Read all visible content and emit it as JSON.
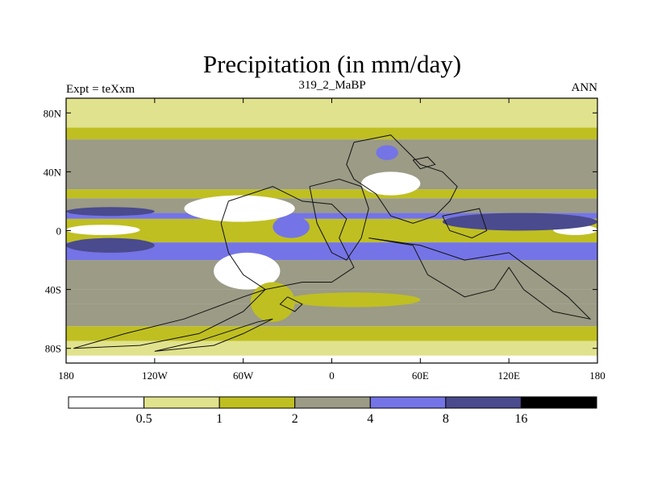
{
  "chart_data": {
    "type": "heatmap",
    "title": "Precipitation (in mm/day)",
    "subtitle_left": "Expt = teXxm",
    "subtitle_center": "319_2_MaBP",
    "subtitle_right": "ANN",
    "x": {
      "range": [
        -180,
        180
      ],
      "ticks": [
        -180,
        -120,
        -60,
        0,
        60,
        120,
        180
      ],
      "tick_labels": [
        "180",
        "120W",
        "60W",
        "0",
        "60E",
        "120E",
        "180"
      ]
    },
    "y": {
      "range": [
        -90,
        90
      ],
      "ticks": [
        80,
        40,
        0,
        -40,
        -80
      ],
      "tick_labels": [
        "80N",
        "40N",
        "0",
        "40S",
        "80S"
      ]
    },
    "colorbar": {
      "levels": [
        0.5,
        1,
        2,
        4,
        8,
        16
      ],
      "level_labels": [
        "0.5",
        "1",
        "2",
        "4",
        "8",
        "16"
      ],
      "colors": [
        "#ffffff",
        "#e1e28d",
        "#bfbf22",
        "#9b9b86",
        "#7474e6",
        "#4a4a8e",
        "#000000"
      ]
    },
    "zonal_bands": [
      {
        "lat": [
          70,
          90
        ],
        "class": 1
      },
      {
        "lat": [
          62,
          70
        ],
        "class": 2
      },
      {
        "lat": [
          28,
          62
        ],
        "class": 3
      },
      {
        "lat": [
          22,
          28
        ],
        "class": 2
      },
      {
        "lat": [
          12,
          22
        ],
        "class": 3
      },
      {
        "lat": [
          8,
          12
        ],
        "class": 4
      },
      {
        "lat": [
          -8,
          8
        ],
        "class": 2
      },
      {
        "lat": [
          -20,
          -8
        ],
        "class": 4
      },
      {
        "lat": [
          -40,
          -20
        ],
        "class": 3
      },
      {
        "lat": [
          -50,
          -40
        ],
        "class": 3
      },
      {
        "lat": [
          -65,
          -50
        ],
        "class": 3
      },
      {
        "lat": [
          -75,
          -65
        ],
        "class": 2
      },
      {
        "lat": [
          -85,
          -75
        ],
        "class": 1
      },
      {
        "lat": [
          -90,
          -85
        ],
        "class": 0
      }
    ],
    "features": [
      {
        "lon": [
          -180,
          -130
        ],
        "lat": [
          -3,
          4
        ],
        "class": 0
      },
      {
        "lon": [
          150,
          180
        ],
        "lat": [
          -3,
          4
        ],
        "class": 0
      },
      {
        "lon": [
          -100,
          -25
        ],
        "lat": [
          6,
          24
        ],
        "class": 0
      },
      {
        "lon": [
          -80,
          -35
        ],
        "lat": [
          -40,
          -15
        ],
        "class": 0
      },
      {
        "lon": [
          20,
          60
        ],
        "lat": [
          24,
          40
        ],
        "class": 0
      },
      {
        "lon": [
          75,
          180
        ],
        "lat": [
          0,
          12
        ],
        "class": 5
      },
      {
        "lon": [
          -180,
          -120
        ],
        "lat": [
          -15,
          -5
        ],
        "class": 5
      },
      {
        "lon": [
          -180,
          -120
        ],
        "lat": [
          10,
          16
        ],
        "class": 5
      },
      {
        "lon": [
          30,
          45
        ],
        "lat": [
          48,
          58
        ],
        "class": 4
      },
      {
        "lon": [
          -40,
          -15
        ],
        "lat": [
          -5,
          10
        ],
        "class": 4
      },
      {
        "lon": [
          -55,
          -25
        ],
        "lat": [
          -62,
          -35
        ],
        "class": 2
      },
      {
        "lon": [
          -30,
          60
        ],
        "lat": [
          -52,
          -42
        ],
        "class": 2
      }
    ],
    "outlines": [
      [
        [
          -70,
          20
        ],
        [
          -40,
          30
        ],
        [
          -20,
          20
        ],
        [
          0,
          18
        ],
        [
          10,
          8
        ],
        [
          5,
          -5
        ],
        [
          15,
          -25
        ],
        [
          0,
          -35
        ],
        [
          -20,
          -35
        ],
        [
          -45,
          -40
        ],
        [
          -60,
          -30
        ],
        [
          -70,
          -15
        ],
        [
          -75,
          5
        ],
        [
          -70,
          20
        ]
      ],
      [
        [
          15,
          60
        ],
        [
          40,
          65
        ],
        [
          50,
          55
        ],
        [
          60,
          45
        ],
        [
          75,
          40
        ],
        [
          85,
          30
        ],
        [
          80,
          20
        ],
        [
          70,
          10
        ],
        [
          55,
          5
        ],
        [
          40,
          10
        ],
        [
          30,
          25
        ],
        [
          15,
          35
        ],
        [
          10,
          45
        ],
        [
          15,
          60
        ]
      ],
      [
        [
          -15,
          30
        ],
        [
          5,
          35
        ],
        [
          20,
          30
        ],
        [
          25,
          15
        ],
        [
          20,
          -5
        ],
        [
          10,
          -20
        ],
        [
          0,
          -15
        ],
        [
          -10,
          5
        ],
        [
          -15,
          30
        ]
      ],
      [
        [
          75,
          10
        ],
        [
          100,
          15
        ],
        [
          105,
          0
        ],
        [
          95,
          -5
        ],
        [
          80,
          0
        ],
        [
          75,
          10
        ]
      ],
      [
        [
          25,
          -5
        ],
        [
          55,
          -10
        ],
        [
          65,
          -30
        ],
        [
          90,
          -45
        ],
        [
          110,
          -40
        ],
        [
          120,
          -25
        ],
        [
          130,
          -40
        ],
        [
          150,
          -55
        ],
        [
          175,
          -60
        ],
        [
          160,
          -45
        ],
        [
          140,
          -30
        ],
        [
          120,
          -15
        ],
        [
          90,
          -20
        ],
        [
          60,
          -10
        ],
        [
          25,
          -5
        ]
      ],
      [
        [
          -175,
          -80
        ],
        [
          -130,
          -78
        ],
        [
          -90,
          -70
        ],
        [
          -60,
          -55
        ],
        [
          -45,
          -40
        ],
        [
          -60,
          -45
        ],
        [
          -100,
          -60
        ],
        [
          -140,
          -70
        ],
        [
          -175,
          -80
        ]
      ],
      [
        [
          -120,
          -82
        ],
        [
          -80,
          -78
        ],
        [
          -60,
          -70
        ],
        [
          -40,
          -60
        ],
        [
          -50,
          -62
        ],
        [
          -90,
          -75
        ],
        [
          -120,
          -82
        ]
      ],
      [
        [
          -30,
          -45
        ],
        [
          -20,
          -50
        ],
        [
          -25,
          -55
        ],
        [
          -35,
          -50
        ],
        [
          -30,
          -45
        ]
      ],
      [
        [
          55,
          48
        ],
        [
          65,
          50
        ],
        [
          70,
          45
        ],
        [
          60,
          42
        ],
        [
          55,
          48
        ]
      ]
    ]
  }
}
